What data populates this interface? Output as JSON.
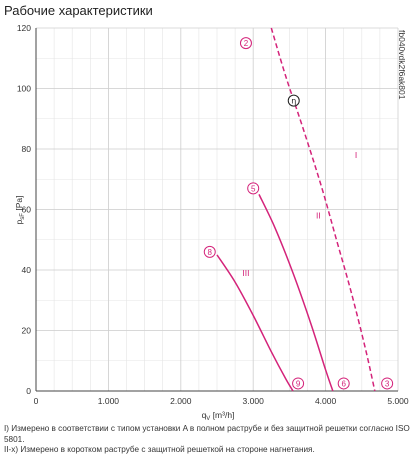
{
  "title": "Рабочие характеристики",
  "side_code": "fb040vdk2f6ak801",
  "chart_data": {
    "type": "line",
    "xlabel": "q",
    "xlabel_sub": "V",
    "xlabel_unit": "[m³/h]",
    "ylabel": "p",
    "ylabel_sub": "sF",
    "ylabel_unit": "[Pa]",
    "xlim": [
      0,
      5000
    ],
    "ylim": [
      0,
      120
    ],
    "xticks": [
      0,
      1000,
      2000,
      3000,
      4000,
      5000
    ],
    "xtick_labels": [
      "0",
      "1.000",
      "2.000",
      "3.000",
      "4.000",
      "5.000"
    ],
    "yticks": [
      0,
      20,
      40,
      60,
      80,
      100,
      120
    ],
    "ytick_labels": [
      "0",
      "20",
      "40",
      "60",
      "80",
      "100",
      "120"
    ],
    "x_minor_step": 250,
    "y_minor_step": 10,
    "grid": true,
    "curve_color": "#d4237a",
    "series": [
      {
        "name": "I",
        "dashed": true,
        "x": [
          3250,
          3450,
          3700,
          3950,
          4150,
          4350,
          4550,
          4680
        ],
        "y": [
          120,
          104,
          86,
          67,
          50,
          33,
          14,
          0
        ]
      },
      {
        "name": "II",
        "dashed": false,
        "x": [
          3080,
          3300,
          3550,
          3800,
          4000,
          4100
        ],
        "y": [
          65,
          54,
          39,
          22,
          7,
          0
        ]
      },
      {
        "name": "III",
        "dashed": false,
        "x": [
          2500,
          2750,
          3000,
          3250,
          3450,
          3550
        ],
        "y": [
          45,
          36,
          25,
          13,
          4,
          0
        ]
      }
    ],
    "series_labels": [
      {
        "text": "I",
        "x": 4420,
        "y": 77
      },
      {
        "text": "II",
        "x": 3900,
        "y": 57
      },
      {
        "text": "III",
        "x": 2900,
        "y": 38
      }
    ],
    "point_markers": [
      {
        "text": "2",
        "x": 2900,
        "y": 115
      },
      {
        "text": "5",
        "x": 3000,
        "y": 67
      },
      {
        "text": "8",
        "x": 2400,
        "y": 46
      },
      {
        "text": "9",
        "x": 3620,
        "y": 2.5
      },
      {
        "text": "6",
        "x": 4250,
        "y": 2.5
      },
      {
        "text": "3",
        "x": 4850,
        "y": 2.5
      }
    ],
    "efficiency_marker": {
      "text": "η",
      "x": 3560,
      "y": 96
    }
  },
  "notes": [
    "I) Измерено в соответствии с типом установки A в полном раструбе и без защитной решетки согласно ISO 5801.",
    "II-x) Измерено в коротком раструбе с защитной решеткой на стороне нагнетания."
  ]
}
